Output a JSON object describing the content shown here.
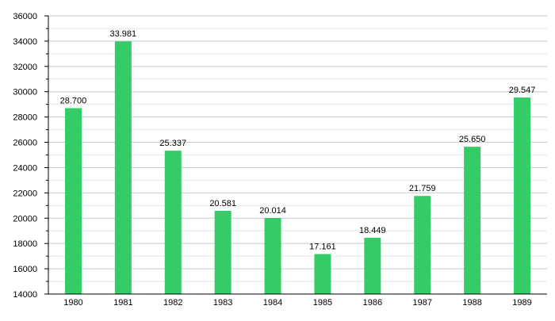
{
  "chart_data": {
    "type": "bar",
    "categories": [
      "1980",
      "1981",
      "1982",
      "1983",
      "1984",
      "1985",
      "1986",
      "1987",
      "1988",
      "1989"
    ],
    "values": [
      28700,
      33981,
      25337,
      20581,
      20014,
      17161,
      18449,
      21759,
      25650,
      29547
    ],
    "data_labels": [
      "28.700",
      "33.981",
      "25.337",
      "20.581",
      "20.014",
      "17.161",
      "18.449",
      "21.759",
      "25.650",
      "29.547"
    ],
    "ylim": [
      14000,
      36000
    ],
    "y_ticks": [
      14000,
      16000,
      18000,
      20000,
      22000,
      24000,
      26000,
      28000,
      30000,
      32000,
      34000,
      36000
    ],
    "y_tick_labels": [
      "14000",
      "16000",
      "18000",
      "20000",
      "22000",
      "24000",
      "26000",
      "28000",
      "30000",
      "32000",
      "34000",
      "36000"
    ],
    "minor_grid": true,
    "grid": true,
    "legend": "none",
    "colors": {
      "bar": "#33cc66",
      "grid_major": "#c8c8d8",
      "grid_minor": "#e6e6ee",
      "axis": "#000000"
    }
  }
}
